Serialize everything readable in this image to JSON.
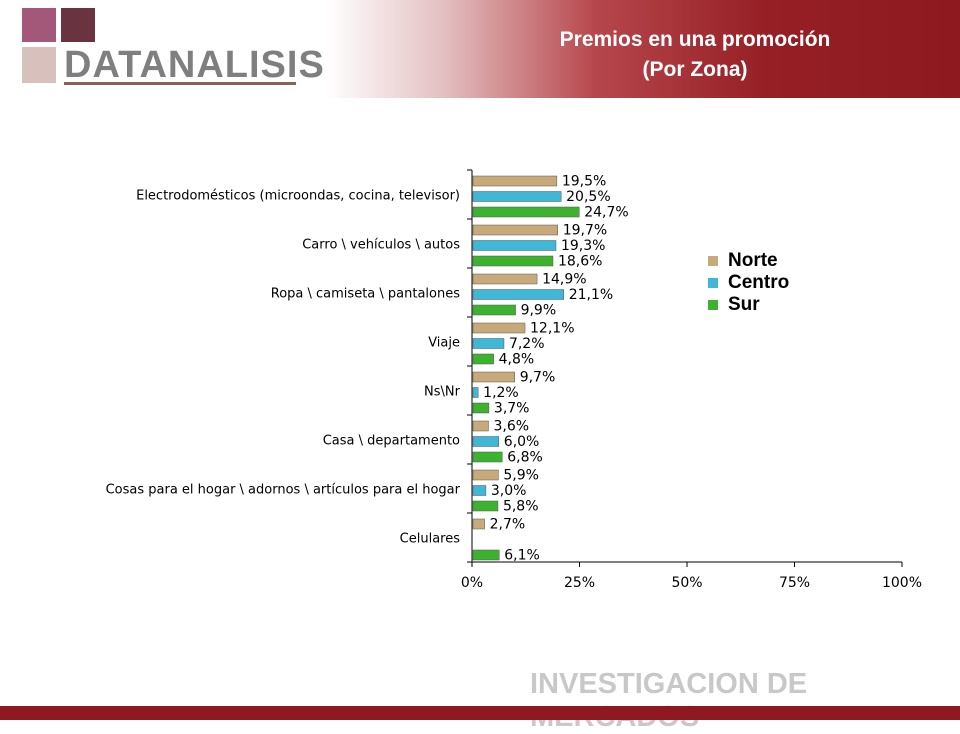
{
  "header": {
    "logo_text": "DATANALISIS",
    "title_line1": "Premios en una promoción",
    "title_line2": "(Por Zona)"
  },
  "footer": {
    "text": "INVESTIGACION DE MERCADOS"
  },
  "colors": {
    "header_dark": "#8e1a1f",
    "logo_square_1": "#a3587a",
    "logo_square_2": "#6a3340",
    "logo_square_3": "#d8c0bd",
    "logo_text": "#7f7f7f",
    "footer_text": "#c8c8c8"
  },
  "chart_data": {
    "type": "bar",
    "orientation": "horizontal",
    "categories": [
      "Electrodomésticos (microondas, cocina, televisor)",
      "Carro \\ vehículos \\ autos",
      "Ropa \\ camiseta \\ pantalones",
      "Viaje",
      "Ns\\Nr",
      "Casa \\ departamento",
      "Cosas para el hogar \\ adornos \\ artículos para el hogar",
      "Celulares"
    ],
    "series": [
      {
        "name": "Norte",
        "color": "#c8aa7a",
        "values": [
          19.5,
          19.7,
          14.9,
          12.1,
          9.7,
          3.6,
          5.9,
          2.7
        ],
        "labels": [
          "19,5%",
          "19,7%",
          "14,9%",
          "12,1%",
          "9,7%",
          "3,6%",
          "5,9%",
          "2,7%"
        ]
      },
      {
        "name": "Centro",
        "color": "#3fb8d8",
        "values": [
          20.5,
          19.3,
          21.1,
          7.2,
          1.2,
          6.0,
          3.0,
          null
        ],
        "labels": [
          "20,5%",
          "19,3%",
          "21,1%",
          "7,2%",
          "1,2%",
          "6,0%",
          "3,0%",
          ""
        ]
      },
      {
        "name": "Sur",
        "color": "#3cb22e",
        "values": [
          24.7,
          18.6,
          9.9,
          4.8,
          3.7,
          6.8,
          5.8,
          6.1
        ],
        "labels": [
          "24,7%",
          "18,6%",
          "9,9%",
          "4,8%",
          "3,7%",
          "6,8%",
          "5,8%",
          "6,1%"
        ]
      }
    ],
    "xlim": [
      0,
      100
    ],
    "x_ticks": [
      "0%",
      "25%",
      "50%",
      "75%",
      "100%"
    ],
    "legend_position": "right",
    "grid": false
  }
}
